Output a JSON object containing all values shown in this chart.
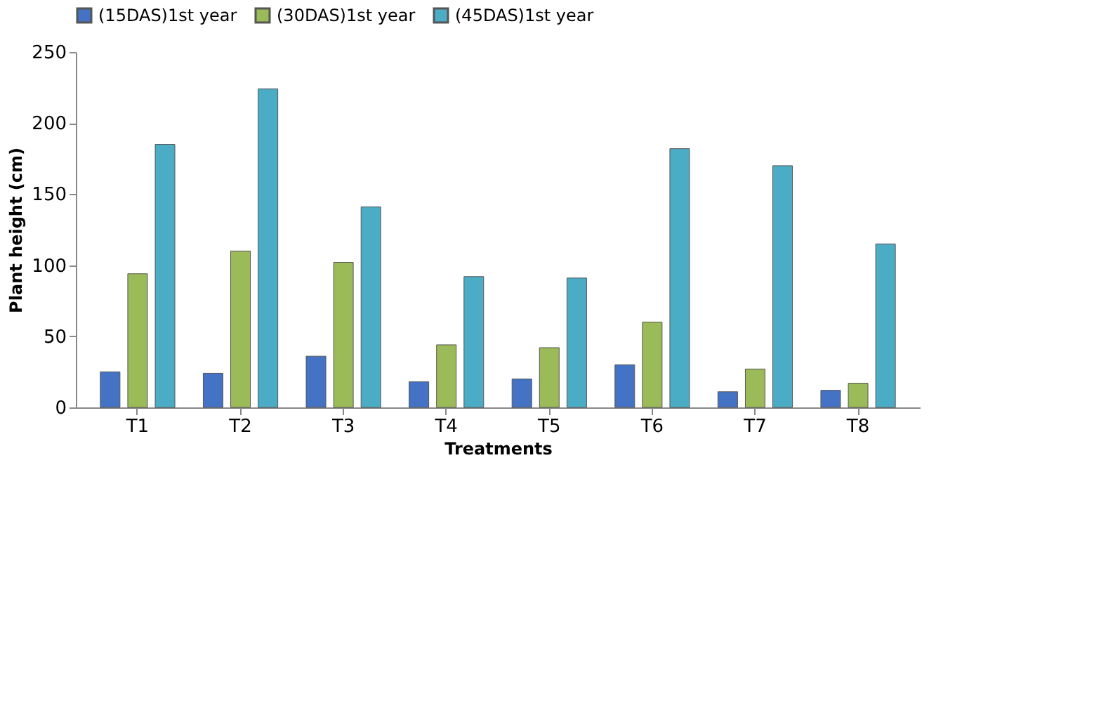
{
  "chart_data": {
    "type": "bar",
    "xlabel": "Treatments",
    "ylabel": "Plant height (cm)",
    "categories": [
      "T1",
      "T2",
      "T3",
      "T4",
      "T5",
      "T6",
      "T7",
      "T8"
    ],
    "series": [
      {
        "name": "(15DAS)1st year",
        "color": "#4472c4",
        "values": [
          25,
          24,
          36,
          18,
          20,
          30,
          11,
          12
        ]
      },
      {
        "name": "(30DAS)1st year",
        "color": "#9bbb59",
        "values": [
          94,
          110,
          102,
          44,
          42,
          60,
          27,
          17
        ]
      },
      {
        "name": "(45DAS)1st year",
        "color": "#4bacc6",
        "values": [
          185,
          224,
          141,
          92,
          91,
          182,
          170,
          115
        ]
      }
    ],
    "ylim": [
      0,
      250
    ],
    "yticks": [
      0,
      50,
      100,
      150,
      200,
      250
    ],
    "grid": false,
    "legend": "top"
  }
}
